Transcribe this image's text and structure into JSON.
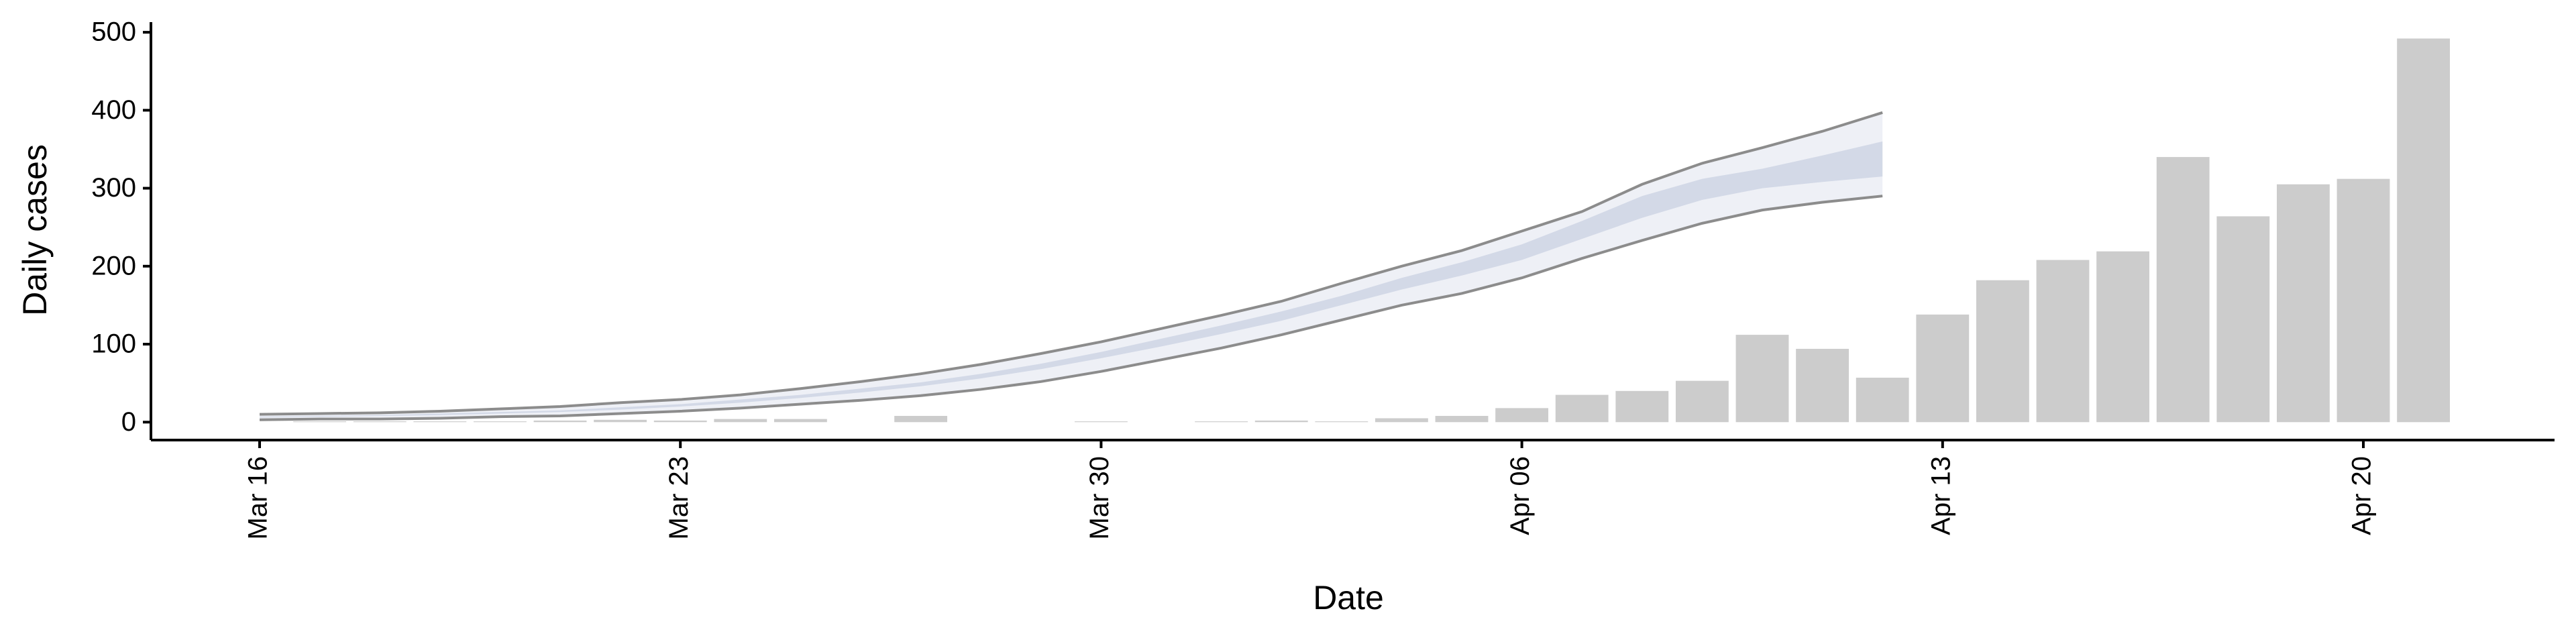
{
  "chart_data": {
    "type": "bar",
    "x_label": "Date",
    "y_label": "Daily cases",
    "categories": [
      "Mar 16",
      null,
      null,
      null,
      null,
      null,
      null,
      "Mar 23",
      null,
      null,
      null,
      null,
      null,
      null,
      "Mar 30",
      null,
      null,
      null,
      null,
      null,
      null,
      "Apr 06",
      null,
      null,
      null,
      null,
      null,
      null,
      "Apr 13",
      null,
      null,
      null,
      null,
      null,
      null,
      "Apr 20",
      null
    ],
    "series": [
      {
        "color": "#cccccc",
        "values": [
          0,
          1,
          1,
          1,
          1,
          2,
          3,
          2,
          4,
          4,
          0,
          8,
          0,
          0,
          1,
          0,
          1,
          2,
          1,
          5,
          8,
          18,
          35,
          40,
          53,
          112,
          94,
          57,
          138,
          182,
          208,
          219,
          340,
          264,
          305,
          312,
          492
        ]
      }
    ],
    "bands": [
      {
        "color": "#eef0f6",
        "line_color": "#8c8c8c",
        "lower": [
          3,
          4,
          4,
          5,
          7,
          8,
          11,
          14,
          18,
          23,
          28,
          34,
          42,
          52,
          65,
          80,
          95,
          112,
          131,
          150,
          165,
          185,
          210,
          233,
          255,
          272,
          282,
          290,
          null,
          null,
          null,
          null,
          null,
          null,
          null,
          null,
          null
        ],
        "upper": [
          10,
          11,
          12,
          14,
          17,
          20,
          25,
          29,
          35,
          43,
          52,
          62,
          74,
          88,
          103,
          120,
          137,
          155,
          178,
          200,
          220,
          245,
          270,
          305,
          332,
          352,
          373,
          397,
          null,
          null,
          null,
          null,
          null,
          null,
          null,
          null,
          null
        ]
      },
      {
        "color": "#d3d9e7",
        "lower": [
          6,
          7,
          8,
          9,
          11,
          13,
          16,
          20,
          25,
          31,
          38,
          46,
          56,
          68,
          82,
          97,
          113,
          130,
          150,
          170,
          188,
          208,
          235,
          262,
          285,
          300,
          308,
          315,
          null,
          null,
          null,
          null,
          null,
          null,
          null,
          null,
          null
        ],
        "upper": [
          7,
          8,
          9,
          11,
          13,
          15,
          19,
          23,
          29,
          35,
          43,
          51,
          62,
          75,
          90,
          107,
          124,
          142,
          162,
          185,
          205,
          228,
          258,
          290,
          312,
          325,
          342,
          360,
          null,
          null,
          null,
          null,
          null,
          null,
          null,
          null,
          null
        ]
      }
    ],
    "ylim": [
      -23,
      513
    ],
    "yticks": [
      0,
      100,
      200,
      300,
      400,
      500
    ]
  }
}
